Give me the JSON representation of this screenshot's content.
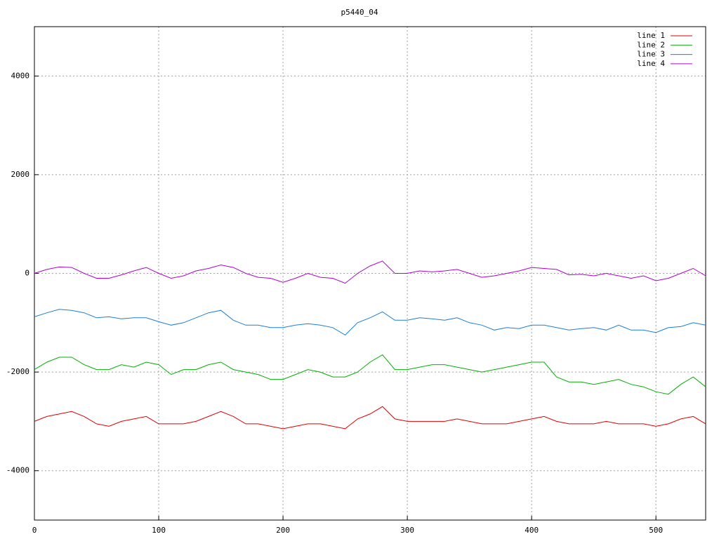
{
  "chart_data": {
    "type": "line",
    "title": "p5440_04",
    "x": [
      0,
      10,
      20,
      30,
      40,
      50,
      60,
      70,
      80,
      90,
      100,
      110,
      120,
      130,
      140,
      150,
      160,
      170,
      180,
      190,
      200,
      210,
      220,
      230,
      240,
      250,
      260,
      270,
      280,
      290,
      300,
      310,
      320,
      330,
      340,
      350,
      360,
      370,
      380,
      390,
      400,
      410,
      420,
      430,
      440,
      450,
      460,
      470,
      480,
      490,
      500,
      510,
      520,
      530,
      540
    ],
    "series": [
      {
        "name": "line 1",
        "color": "#e00000",
        "values": [
          -3000,
          -2900,
          -2850,
          -2800,
          -2900,
          -3050,
          -3100,
          -3000,
          -2950,
          -2900,
          -3050,
          -3050,
          -3050,
          -3000,
          -2900,
          -2800,
          -2900,
          -3050,
          -3050,
          -3100,
          -3150,
          -3100,
          -3050,
          -3050,
          -3100,
          -3150,
          -2950,
          -2850,
          -2700,
          -2950,
          -3000,
          -3000,
          -3000,
          -3000,
          -2950,
          -3000,
          -3050,
          -3050,
          -3050,
          -3000,
          -2950,
          -2900,
          -3000,
          -3050,
          -3050,
          -3050,
          -3000,
          -3050,
          -3050,
          -3050,
          -3100,
          -3050,
          -2950,
          -2900,
          -3050
        ]
      },
      {
        "name": "line 2",
        "color": "#00b000",
        "values": [
          -1950,
          -1800,
          -1700,
          -1700,
          -1850,
          -1950,
          -1950,
          -1850,
          -1900,
          -1800,
          -1850,
          -2050,
          -1950,
          -1950,
          -1850,
          -1800,
          -1950,
          -2000,
          -2050,
          -2150,
          -2150,
          -2050,
          -1950,
          -2000,
          -2100,
          -2100,
          -2000,
          -1800,
          -1650,
          -1950,
          -1950,
          -1900,
          -1850,
          -1850,
          -1900,
          -1950,
          -2000,
          -1950,
          -1900,
          -1850,
          -1800,
          -1800,
          -2100,
          -2200,
          -2200,
          -2250,
          -2200,
          -2150,
          -2250,
          -2300,
          -2400,
          -2450,
          -2250,
          -2100,
          -2300
        ]
      },
      {
        "name": "line 3",
        "color": "#1a7fd6",
        "values": [
          -880,
          -800,
          -730,
          -750,
          -800,
          -900,
          -880,
          -920,
          -900,
          -900,
          -980,
          -1050,
          -1000,
          -900,
          -800,
          -750,
          -950,
          -1050,
          -1050,
          -1100,
          -1100,
          -1050,
          -1020,
          -1050,
          -1100,
          -1250,
          -1000,
          -900,
          -780,
          -950,
          -950,
          -900,
          -920,
          -950,
          -900,
          -1000,
          -1050,
          -1150,
          -1100,
          -1120,
          -1050,
          -1050,
          -1100,
          -1150,
          -1120,
          -1100,
          -1150,
          -1050,
          -1150,
          -1150,
          -1200,
          -1100,
          -1080,
          -1000,
          -1050
        ]
      },
      {
        "name": "line 4",
        "color": "#b000d0",
        "values": [
          0,
          80,
          130,
          120,
          0,
          -100,
          -100,
          -30,
          50,
          120,
          0,
          -100,
          -50,
          50,
          100,
          170,
          120,
          0,
          -80,
          -100,
          -180,
          -100,
          0,
          -80,
          -100,
          -200,
          0,
          150,
          250,
          0,
          0,
          50,
          30,
          50,
          80,
          0,
          -80,
          -50,
          0,
          50,
          120,
          100,
          80,
          -30,
          -20,
          -50,
          0,
          -50,
          -100,
          -50,
          -150,
          -100,
          0,
          100,
          -50
        ]
      }
    ],
    "xlim": [
      0,
      540
    ],
    "ylim": [
      -5000,
      5000
    ],
    "xticks": [
      0,
      100,
      200,
      300,
      400,
      500
    ],
    "yticks": [
      -4000,
      -2000,
      0,
      2000,
      4000
    ],
    "grid": true,
    "legend": "top-right"
  }
}
